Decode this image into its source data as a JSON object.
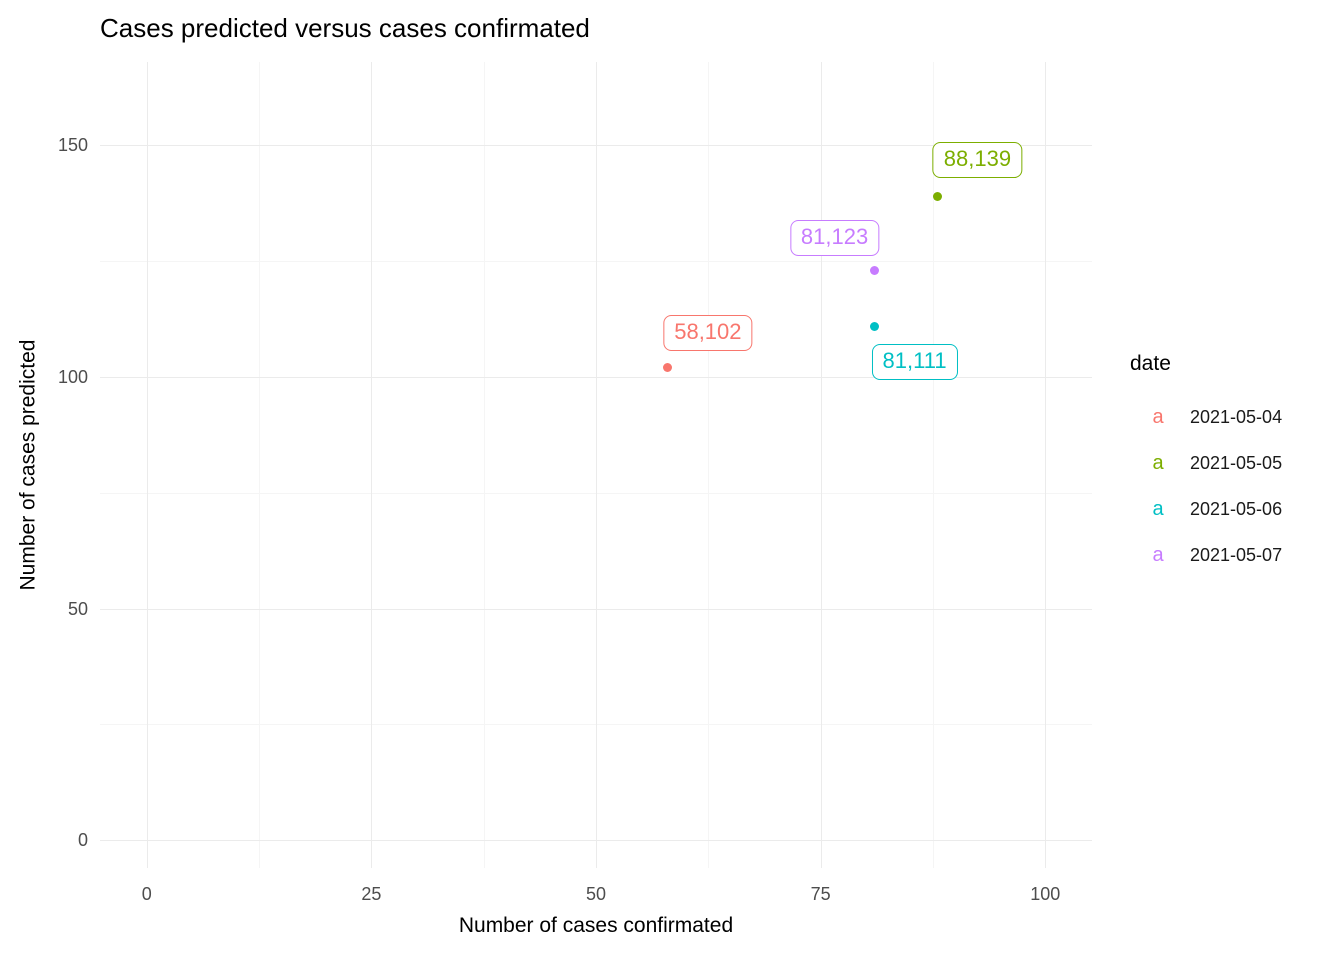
{
  "title": "Cases predicted versus cases confirmated",
  "axes": {
    "x_label": "Number of cases confirmated",
    "y_label": "Number of cases predicted"
  },
  "legend": {
    "title": "date",
    "key_glyph": "a"
  },
  "chart_data": {
    "type": "scatter",
    "title": "Cases predicted versus cases confirmated",
    "xlabel": "Number of cases confirmated",
    "ylabel": "Number of cases predicted",
    "xlim": [
      -5.2,
      105.2
    ],
    "ylim": [
      -6,
      168
    ],
    "x_ticks": [
      0,
      25,
      50,
      75,
      100
    ],
    "y_ticks": [
      0,
      50,
      100,
      150
    ],
    "grid": true,
    "legend_position": "right",
    "legend_title": "date",
    "series": [
      {
        "name": "2021-05-04",
        "color": "#F8766D",
        "points": [
          {
            "x": 58,
            "y": 102,
            "label": "58,102",
            "label_dx": 40,
            "label_dy": -35
          }
        ]
      },
      {
        "name": "2021-05-05",
        "color": "#7CAE00",
        "points": [
          {
            "x": 88,
            "y": 139,
            "label": "88,139",
            "label_dx": 40,
            "label_dy": -36
          }
        ]
      },
      {
        "name": "2021-05-06",
        "color": "#00BFC4",
        "points": [
          {
            "x": 81,
            "y": 111,
            "label": "81,111",
            "label_dx": 40,
            "label_dy": 36
          }
        ]
      },
      {
        "name": "2021-05-07",
        "color": "#C77CFF",
        "points": [
          {
            "x": 81,
            "y": 123,
            "label": "81,123",
            "label_dx": -40,
            "label_dy": -32
          }
        ]
      }
    ]
  }
}
